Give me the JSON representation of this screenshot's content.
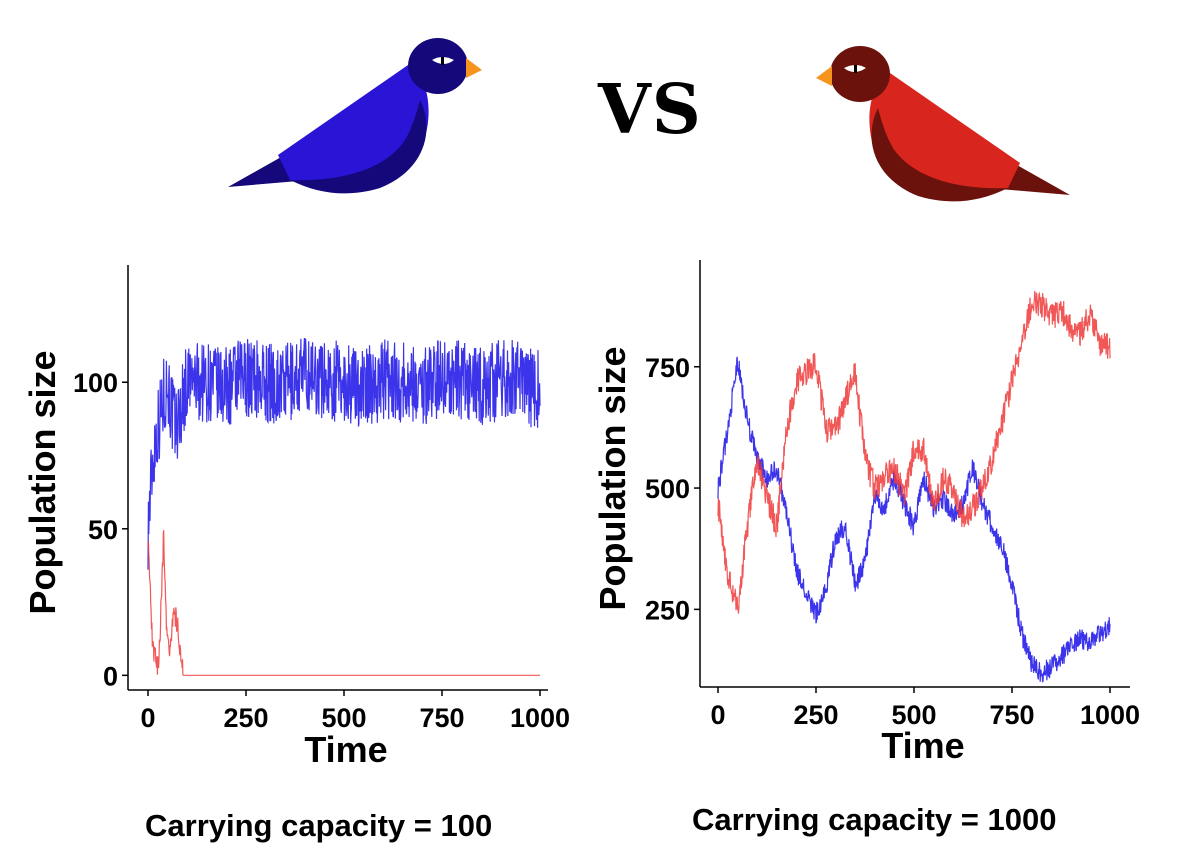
{
  "header": {
    "vs_text": "VS"
  },
  "birds": {
    "left": {
      "icon": "blue-bird-icon",
      "body_color": "#2a14d6",
      "wing_color": "#14087a",
      "head_color": "#14087a",
      "beak_color": "#f7941d"
    },
    "right": {
      "icon": "red-bird-icon",
      "body_color": "#d8261e",
      "wing_color": "#6b120c",
      "head_color": "#6b120c",
      "beak_color": "#f7941d"
    }
  },
  "colors": {
    "blue_series": "#1a10e8",
    "red_series": "#f03a3a"
  },
  "chart_data": [
    {
      "type": "line",
      "caption": "Carrying capacity = 100",
      "xlabel": "Time",
      "ylabel": "Population size",
      "xlim": [
        0,
        1000
      ],
      "ylim": [
        -5,
        140
      ],
      "xticks": [
        0,
        250,
        500,
        750,
        1000
      ],
      "xtick_labels": [
        "0",
        "250",
        "500",
        "750",
        "1000"
      ],
      "yticks": [
        0,
        50,
        100
      ],
      "ytick_labels": [
        "0",
        "50",
        "100"
      ],
      "grid": false,
      "legend": "none",
      "series": [
        {
          "color": "#1a10e8",
          "x": [
            0,
            10,
            20,
            30,
            40,
            50,
            60,
            70,
            80,
            90,
            100,
            150,
            200,
            250,
            300,
            350,
            400,
            450,
            500,
            550,
            600,
            650,
            700,
            750,
            800,
            850,
            900,
            950,
            1000
          ],
          "y": [
            50,
            70,
            82,
            88,
            95,
            100,
            90,
            85,
            88,
            95,
            100,
            100,
            98,
            102,
            100,
            99,
            103,
            101,
            100,
            98,
            101,
            100,
            99,
            102,
            100,
            98,
            101,
            100,
            97
          ],
          "noise": 14
        },
        {
          "color": "#f03a3a",
          "x": [
            0,
            5,
            10,
            15,
            20,
            25,
            30,
            35,
            40,
            45,
            50,
            55,
            60,
            65,
            70,
            75,
            80,
            85,
            90,
            95,
            100,
            250,
            500,
            750,
            1000
          ],
          "y": [
            48,
            30,
            15,
            8,
            5,
            4,
            10,
            30,
            48,
            25,
            12,
            8,
            15,
            22,
            20,
            18,
            12,
            5,
            0,
            0,
            0,
            0,
            0,
            0,
            0
          ],
          "noise": 4
        }
      ]
    },
    {
      "type": "line",
      "caption": "Carrying capacity = 1000",
      "xlabel": "Time",
      "ylabel": "Population size",
      "xlim": [
        0,
        1000
      ],
      "ylim": [
        90,
        970
      ],
      "xticks": [
        0,
        250,
        500,
        750,
        1000
      ],
      "xtick_labels": [
        "0",
        "250",
        "500",
        "750",
        "1000"
      ],
      "yticks": [
        250,
        500,
        750
      ],
      "ytick_labels": [
        "250",
        "500",
        "750"
      ],
      "grid": false,
      "legend": "none",
      "series": [
        {
          "color": "#1a10e8",
          "x": [
            0,
            25,
            50,
            75,
            100,
            125,
            150,
            175,
            200,
            225,
            250,
            275,
            300,
            325,
            350,
            375,
            400,
            425,
            450,
            475,
            500,
            525,
            550,
            575,
            600,
            625,
            650,
            675,
            700,
            725,
            750,
            775,
            800,
            825,
            850,
            875,
            900,
            925,
            950,
            975,
            1000
          ],
          "y": [
            500,
            620,
            760,
            640,
            560,
            520,
            540,
            450,
            330,
            280,
            240,
            290,
            400,
            420,
            300,
            350,
            480,
            460,
            520,
            470,
            420,
            520,
            460,
            480,
            440,
            470,
            540,
            470,
            420,
            380,
            300,
            200,
            140,
            120,
            130,
            150,
            175,
            190,
            180,
            200,
            220
          ],
          "noise": 22
        },
        {
          "color": "#f03a3a",
          "x": [
            0,
            25,
            50,
            75,
            100,
            125,
            150,
            175,
            200,
            225,
            250,
            275,
            300,
            325,
            350,
            375,
            400,
            425,
            450,
            475,
            500,
            525,
            550,
            575,
            600,
            625,
            650,
            675,
            700,
            725,
            750,
            775,
            800,
            825,
            850,
            875,
            900,
            925,
            950,
            975,
            1000
          ],
          "y": [
            470,
            320,
            250,
            420,
            560,
            480,
            420,
            620,
            720,
            740,
            760,
            620,
            620,
            680,
            740,
            560,
            500,
            520,
            540,
            480,
            580,
            580,
            460,
            520,
            500,
            440,
            460,
            500,
            560,
            640,
            720,
            800,
            880,
            880,
            850,
            870,
            830,
            820,
            860,
            800,
            790
          ],
          "noise": 28
        }
      ]
    }
  ]
}
